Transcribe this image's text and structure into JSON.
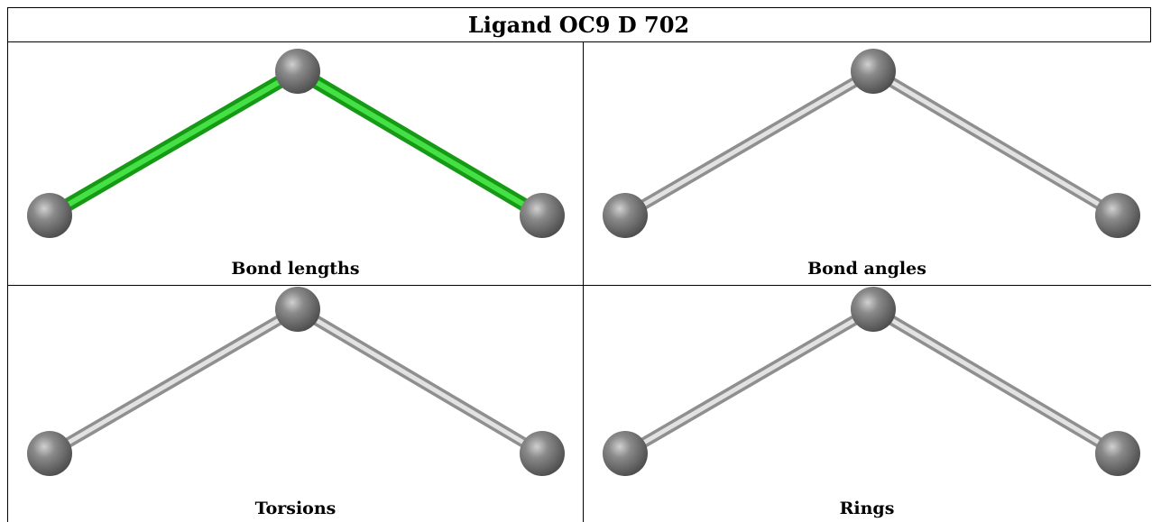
{
  "title": "Ligand OC9 D 702",
  "panels": [
    {
      "caption": "Bond lengths"
    },
    {
      "caption": "Bond angles"
    },
    {
      "caption": "Torsions"
    },
    {
      "caption": "Rings"
    }
  ]
}
